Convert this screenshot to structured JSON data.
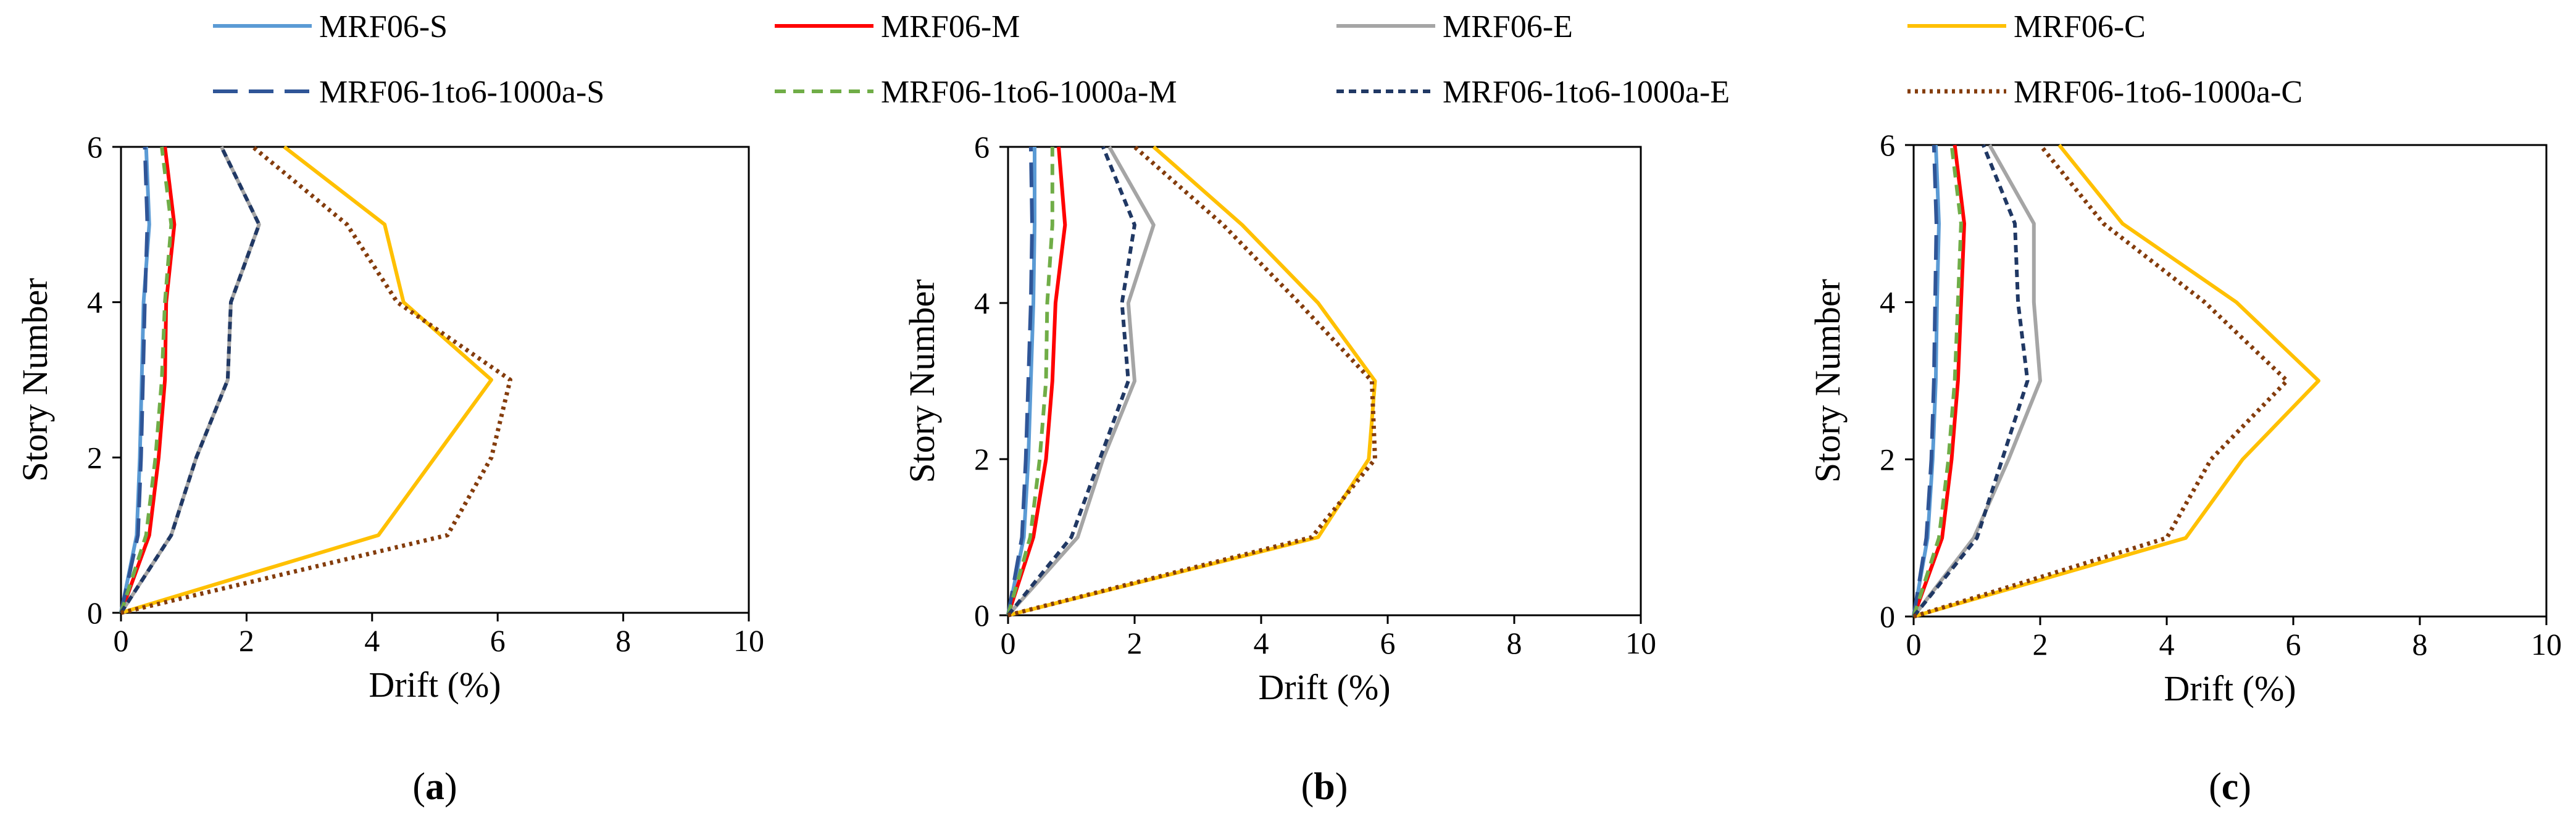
{
  "legend": [
    {
      "id": "s1",
      "label": "MRF06-S"
    },
    {
      "id": "s2",
      "label": "MRF06-M"
    },
    {
      "id": "s3",
      "label": "MRF06-E"
    },
    {
      "id": "s4",
      "label": "MRF06-C"
    },
    {
      "id": "s5",
      "label": "MRF06-1to6-1000a-S"
    },
    {
      "id": "s6",
      "label": "MRF06-1to6-1000a-M"
    },
    {
      "id": "s7",
      "label": "MRF06-1to6-1000a-E"
    },
    {
      "id": "s8",
      "label": "MRF06-1to6-1000a-C"
    }
  ],
  "styles": {
    "s1": {
      "color": "#5B9BD5",
      "dash": ""
    },
    "s2": {
      "color": "#FF0000",
      "dash": ""
    },
    "s3": {
      "color": "#A5A5A5",
      "dash": ""
    },
    "s4": {
      "color": "#FFC000",
      "dash": ""
    },
    "s5": {
      "color": "#2F5597",
      "dash": "40,18"
    },
    "s6": {
      "color": "#70AD47",
      "dash": "18,12"
    },
    "s7": {
      "color": "#203864",
      "dash": "12,8"
    },
    "s8": {
      "color": "#843C0C",
      "dash": "5,7"
    }
  },
  "chart_data": [
    {
      "type": "line",
      "panel_label": "a",
      "xlabel": "Drift (%)",
      "ylabel": "Story Number",
      "xlim": [
        0,
        10
      ],
      "ylim": [
        0,
        6
      ],
      "xticks": [
        "0",
        "2",
        "4",
        "6",
        "8",
        "10"
      ],
      "yticks": [
        "0",
        "2",
        "4",
        "6"
      ],
      "y": [
        0,
        1,
        2,
        3,
        4,
        5,
        6
      ],
      "series": [
        {
          "id": "s1",
          "name": "MRF06-S",
          "values": [
            0,
            0.25,
            0.3,
            0.33,
            0.36,
            0.45,
            0.4
          ]
        },
        {
          "id": "s2",
          "name": "MRF06-M",
          "values": [
            0,
            0.45,
            0.6,
            0.7,
            0.72,
            0.85,
            0.7
          ]
        },
        {
          "id": "s3",
          "name": "MRF06-E",
          "values": [
            0,
            0.8,
            1.2,
            1.7,
            1.75,
            2.2,
            1.6
          ]
        },
        {
          "id": "s4",
          "name": "MRF06-C",
          "values": [
            0,
            4.1,
            5.0,
            5.9,
            4.5,
            4.2,
            2.6
          ]
        },
        {
          "id": "s5",
          "name": "MRF06-1to6-1000a-S",
          "values": [
            0,
            0.27,
            0.32,
            0.35,
            0.38,
            0.42,
            0.38
          ]
        },
        {
          "id": "s6",
          "name": "MRF06-1to6-1000a-M",
          "values": [
            0,
            0.4,
            0.55,
            0.65,
            0.7,
            0.8,
            0.65
          ]
        },
        {
          "id": "s7",
          "name": "MRF06-1to6-1000a-E",
          "values": [
            0,
            0.8,
            1.2,
            1.7,
            1.75,
            2.2,
            1.6
          ]
        },
        {
          "id": "s8",
          "name": "MRF06-1to6-1000a-C",
          "values": [
            0,
            5.2,
            5.9,
            6.2,
            4.4,
            3.6,
            2.1
          ]
        }
      ]
    },
    {
      "type": "line",
      "panel_label": "b",
      "xlabel": "Drift (%)",
      "ylabel": "Story Number",
      "xlim": [
        0,
        10
      ],
      "ylim": [
        0,
        6
      ],
      "xticks": [
        "0",
        "2",
        "4",
        "6",
        "8",
        "10"
      ],
      "yticks": [
        "0",
        "2",
        "4",
        "6"
      ],
      "y": [
        0,
        1,
        2,
        3,
        4,
        5,
        6
      ],
      "series": [
        {
          "id": "s1",
          "name": "MRF06-S",
          "values": [
            0,
            0.25,
            0.32,
            0.36,
            0.4,
            0.42,
            0.42
          ]
        },
        {
          "id": "s2",
          "name": "MRF06-M",
          "values": [
            0,
            0.4,
            0.6,
            0.7,
            0.75,
            0.9,
            0.8
          ]
        },
        {
          "id": "s3",
          "name": "MRF06-E",
          "values": [
            0,
            1.1,
            1.5,
            2.0,
            1.9,
            2.3,
            1.6
          ]
        },
        {
          "id": "s4",
          "name": "MRF06-C",
          "values": [
            0,
            4.9,
            5.7,
            5.8,
            4.9,
            3.7,
            2.3
          ]
        },
        {
          "id": "s5",
          "name": "MRF06-1to6-1000a-S",
          "values": [
            0,
            0.22,
            0.28,
            0.32,
            0.36,
            0.38,
            0.36
          ]
        },
        {
          "id": "s6",
          "name": "MRF06-1to6-1000a-M",
          "values": [
            0,
            0.35,
            0.5,
            0.6,
            0.62,
            0.7,
            0.7
          ]
        },
        {
          "id": "s7",
          "name": "MRF06-1to6-1000a-E",
          "values": [
            0,
            1.0,
            1.45,
            1.9,
            1.8,
            2.0,
            1.5
          ]
        },
        {
          "id": "s8",
          "name": "MRF06-1to6-1000a-C",
          "values": [
            0,
            4.8,
            5.8,
            5.75,
            4.6,
            3.4,
            2.0
          ]
        }
      ]
    },
    {
      "type": "line",
      "panel_label": "c",
      "xlabel": "Drift (%)",
      "ylabel": "Story Number",
      "xlim": [
        0,
        10
      ],
      "ylim": [
        0,
        6
      ],
      "xticks": [
        "0",
        "2",
        "4",
        "6",
        "8",
        "10"
      ],
      "yticks": [
        "0",
        "2",
        "4",
        "6"
      ],
      "y": [
        0,
        1,
        2,
        3,
        4,
        5,
        6
      ],
      "series": [
        {
          "id": "s1",
          "name": "MRF06-S",
          "values": [
            0,
            0.22,
            0.3,
            0.35,
            0.37,
            0.4,
            0.35
          ]
        },
        {
          "id": "s2",
          "name": "MRF06-M",
          "values": [
            0,
            0.45,
            0.6,
            0.7,
            0.75,
            0.8,
            0.65
          ]
        },
        {
          "id": "s3",
          "name": "MRF06-E",
          "values": [
            0,
            0.95,
            1.5,
            2.0,
            1.9,
            1.9,
            1.2
          ]
        },
        {
          "id": "s4",
          "name": "MRF06-C",
          "values": [
            0,
            4.3,
            5.2,
            6.4,
            5.1,
            3.3,
            2.3
          ]
        },
        {
          "id": "s5",
          "name": "MRF06-1to6-1000a-S",
          "values": [
            0,
            0.2,
            0.28,
            0.32,
            0.34,
            0.36,
            0.32
          ]
        },
        {
          "id": "s6",
          "name": "MRF06-1to6-1000a-M",
          "values": [
            0,
            0.4,
            0.55,
            0.65,
            0.7,
            0.75,
            0.6
          ]
        },
        {
          "id": "s7",
          "name": "MRF06-1to6-1000a-E",
          "values": [
            0,
            1.0,
            1.4,
            1.8,
            1.65,
            1.6,
            1.1
          ]
        },
        {
          "id": "s8",
          "name": "MRF06-1to6-1000a-C",
          "values": [
            0,
            4.0,
            4.7,
            5.9,
            4.6,
            3.0,
            2.0
          ]
        }
      ]
    }
  ]
}
